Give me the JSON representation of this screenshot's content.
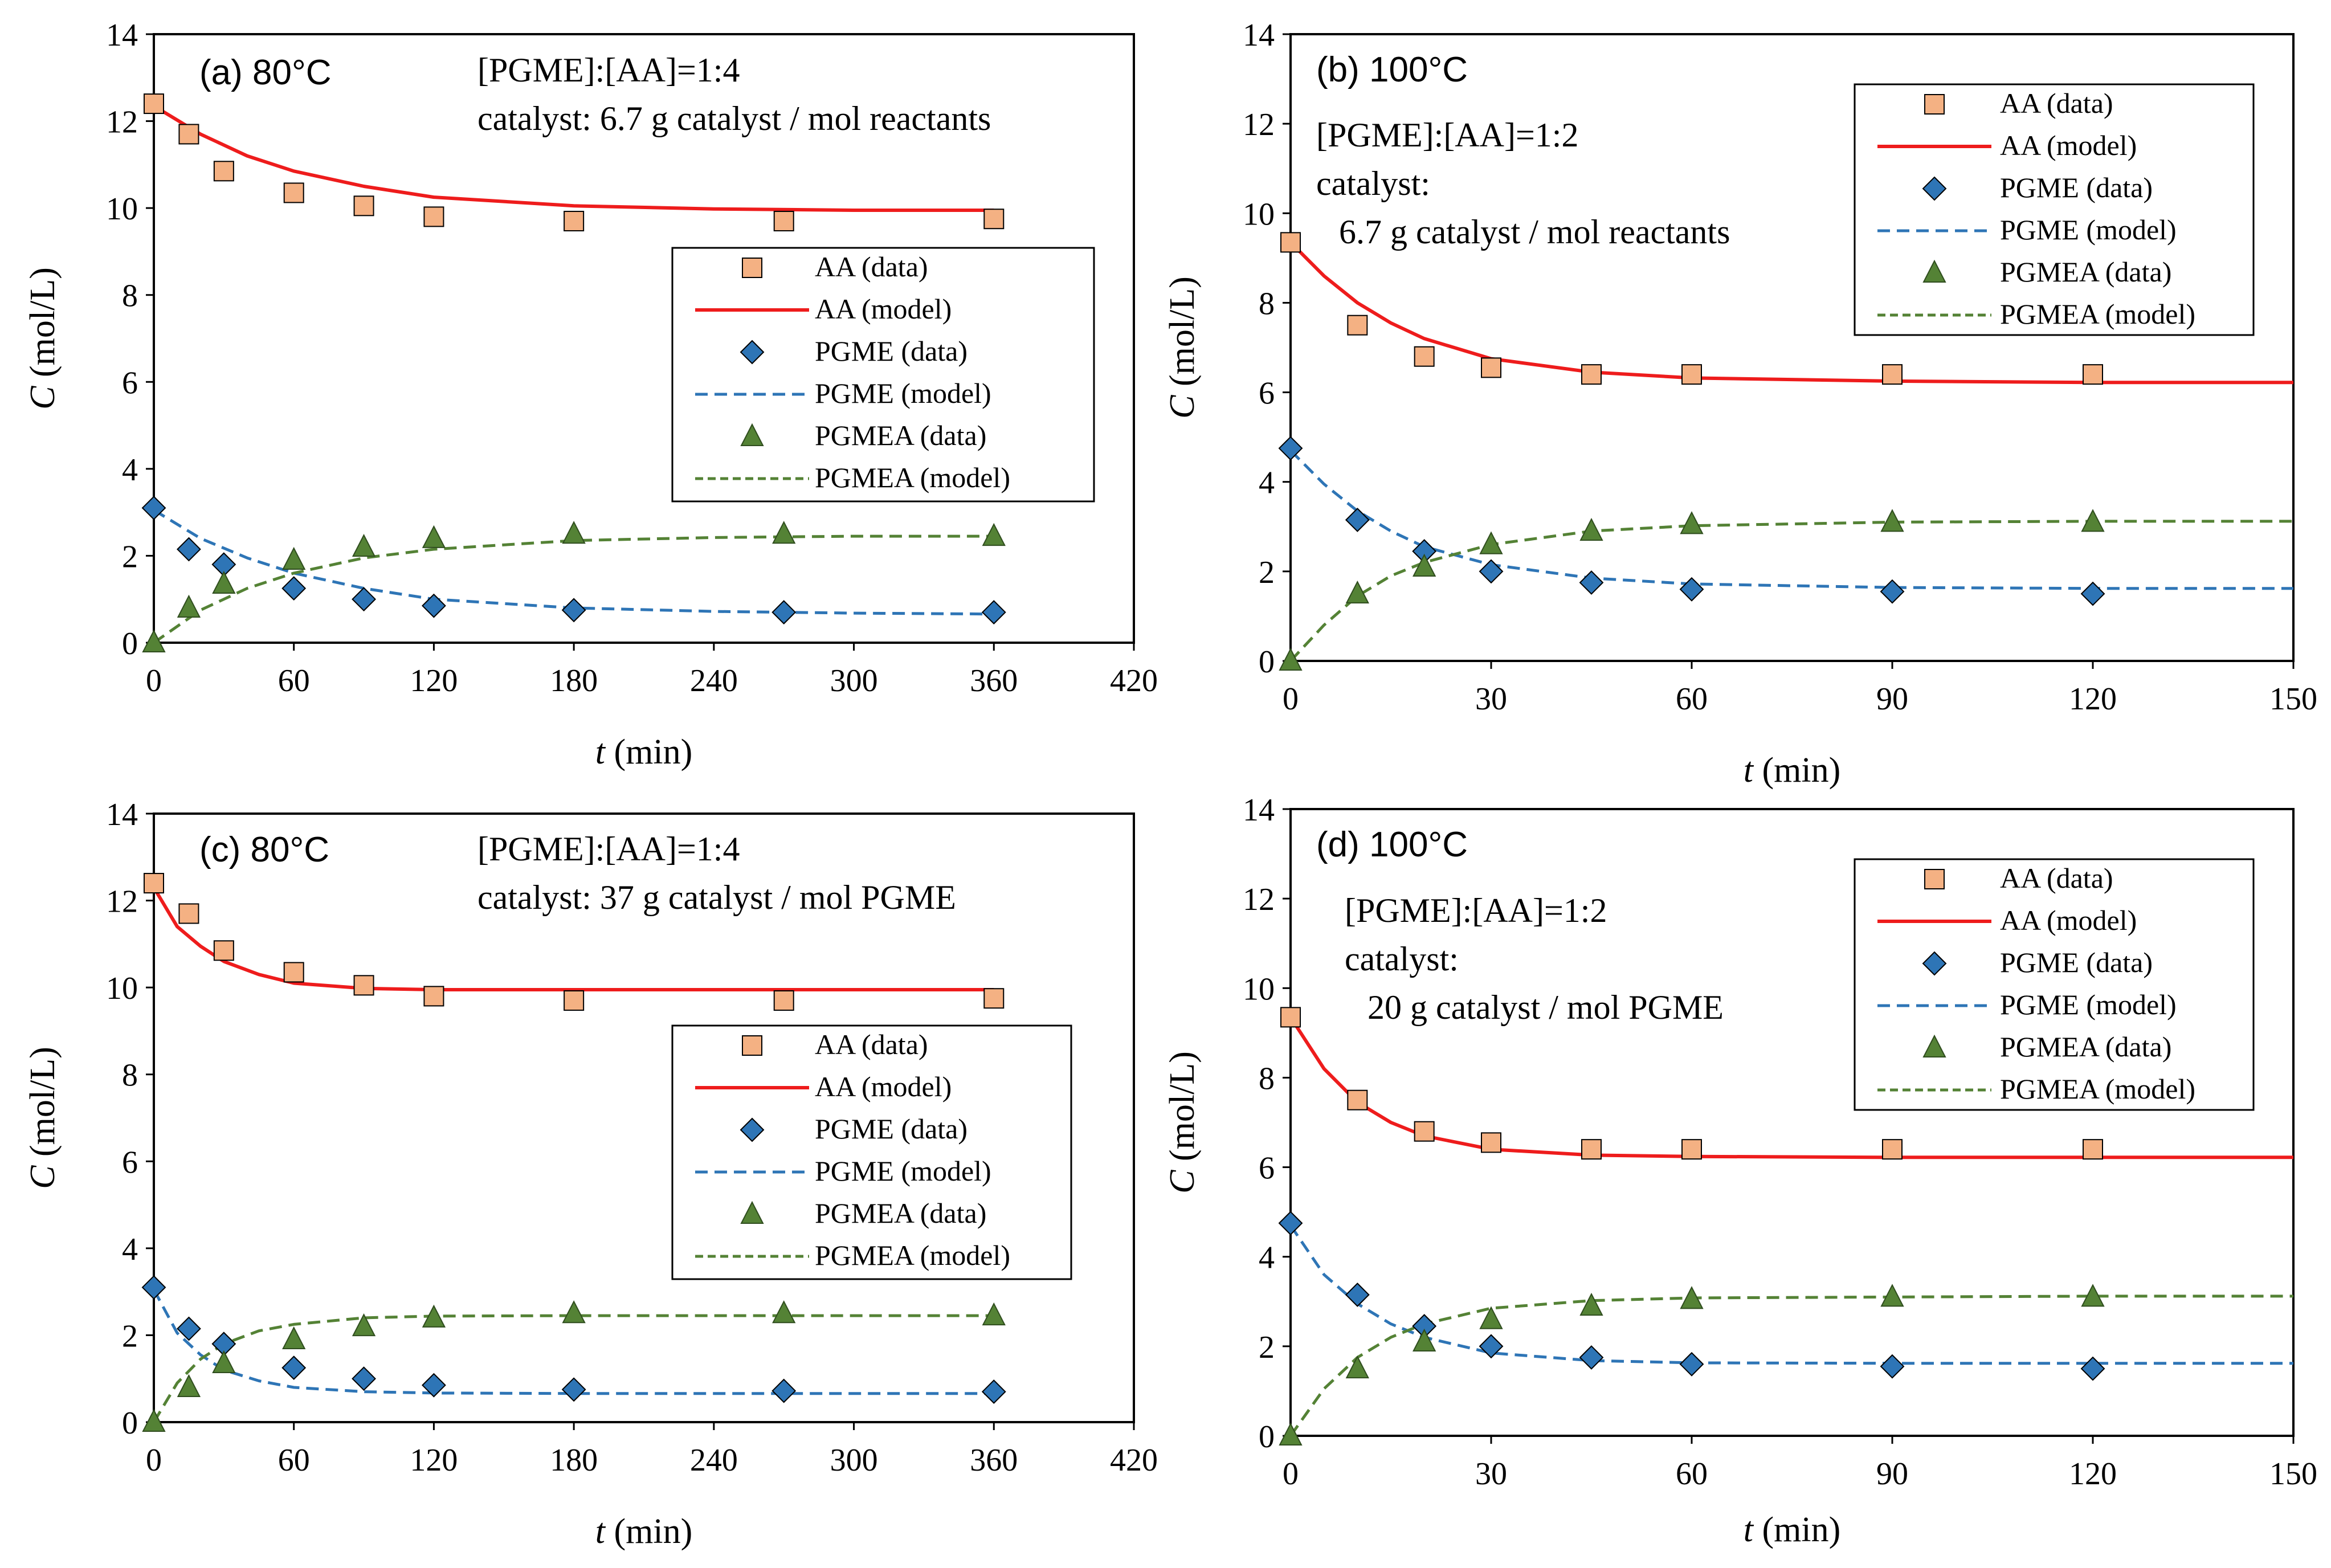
{
  "chart_data": [
    {
      "type": "line",
      "panel": "(a) 80°C",
      "annotations": [
        "[PGME]:[AA]=1:4",
        "catalyst: 6.7 g catalyst / mol reactants"
      ],
      "xlabel_var": "t",
      "xlabel_unit": " (min)",
      "ylabel_var": "C",
      "ylabel_unit": " (mol/L)",
      "xlim": [
        0,
        420
      ],
      "ylim": [
        0,
        14
      ],
      "xticks": [
        0,
        60,
        120,
        180,
        240,
        300,
        360,
        420
      ],
      "yticks": [
        0,
        2,
        4,
        6,
        8,
        10,
        12,
        14
      ],
      "legend": [
        "AA (data)",
        "AA (model)",
        "PGME (data)",
        "PGME (model)",
        "PGMEA (data)",
        "PGMEA (model)"
      ],
      "series": [
        {
          "name": "AA (data)",
          "kind": "marker",
          "marker": "square",
          "x": [
            0,
            15,
            30,
            60,
            90,
            120,
            180,
            270,
            360
          ],
          "y": [
            12.4,
            11.7,
            10.85,
            10.35,
            10.05,
            9.8,
            9.7,
            9.7,
            9.75
          ]
        },
        {
          "name": "PGME (data)",
          "kind": "marker",
          "marker": "diamond",
          "x": [
            0,
            15,
            30,
            60,
            90,
            120,
            180,
            270,
            360
          ],
          "y": [
            3.1,
            2.15,
            1.8,
            1.25,
            1.0,
            0.85,
            0.75,
            0.7,
            0.7
          ]
        },
        {
          "name": "PGMEA (data)",
          "kind": "marker",
          "marker": "triangle",
          "x": [
            0,
            15,
            30,
            60,
            90,
            120,
            180,
            270,
            360
          ],
          "y": [
            0.0,
            0.8,
            1.35,
            1.9,
            2.2,
            2.4,
            2.5,
            2.5,
            2.45
          ]
        },
        {
          "name": "AA (model)",
          "kind": "line",
          "style": "solid",
          "x": [
            0,
            20,
            40,
            60,
            90,
            120,
            180,
            240,
            300,
            360
          ],
          "y": [
            12.35,
            11.7,
            11.2,
            10.85,
            10.5,
            10.25,
            10.05,
            9.98,
            9.95,
            9.95
          ]
        },
        {
          "name": "PGME (model)",
          "kind": "line",
          "style": "dashed",
          "x": [
            0,
            20,
            40,
            60,
            90,
            120,
            180,
            240,
            300,
            360
          ],
          "y": [
            3.05,
            2.4,
            1.95,
            1.6,
            1.25,
            1.0,
            0.8,
            0.72,
            0.68,
            0.66
          ]
        },
        {
          "name": "PGMEA (model)",
          "kind": "line",
          "style": "dashed",
          "x": [
            0,
            20,
            40,
            60,
            90,
            120,
            180,
            240,
            300,
            360
          ],
          "y": [
            0.0,
            0.75,
            1.25,
            1.6,
            1.95,
            2.15,
            2.35,
            2.42,
            2.45,
            2.45
          ]
        }
      ]
    },
    {
      "type": "line",
      "panel": "(b) 100°C",
      "annotations": [
        "[PGME]:[AA]=1:2",
        "catalyst:",
        "6.7 g catalyst / mol reactants"
      ],
      "xlabel_var": "t",
      "xlabel_unit": " (min)",
      "ylabel_var": "C",
      "ylabel_unit": " (mol/L)",
      "xlim": [
        0,
        150
      ],
      "ylim": [
        0,
        14
      ],
      "xticks": [
        0,
        30,
        60,
        90,
        120,
        150
      ],
      "yticks": [
        0,
        2,
        4,
        6,
        8,
        10,
        12,
        14
      ],
      "legend": [
        "AA (data)",
        "AA (model)",
        "PGME (data)",
        "PGME (model)",
        "PGMEA (data)",
        "PGMEA (model)"
      ],
      "series": [
        {
          "name": "AA (data)",
          "kind": "marker",
          "marker": "square",
          "x": [
            0,
            10,
            20,
            30,
            45,
            60,
            90,
            120
          ],
          "y": [
            9.35,
            7.5,
            6.8,
            6.55,
            6.4,
            6.4,
            6.4,
            6.4
          ]
        },
        {
          "name": "PGME (data)",
          "kind": "marker",
          "marker": "diamond",
          "x": [
            0,
            10,
            20,
            30,
            45,
            60,
            90,
            120
          ],
          "y": [
            4.75,
            3.15,
            2.45,
            2.0,
            1.75,
            1.6,
            1.55,
            1.5
          ]
        },
        {
          "name": "PGMEA (data)",
          "kind": "marker",
          "marker": "triangle",
          "x": [
            0,
            10,
            20,
            30,
            45,
            60,
            90,
            120
          ],
          "y": [
            0.0,
            1.5,
            2.1,
            2.6,
            2.9,
            3.05,
            3.1,
            3.1
          ]
        },
        {
          "name": "AA (model)",
          "kind": "line",
          "style": "solid",
          "x": [
            0,
            5,
            10,
            15,
            20,
            30,
            45,
            60,
            90,
            120,
            150
          ],
          "y": [
            9.35,
            8.6,
            8.0,
            7.55,
            7.2,
            6.75,
            6.45,
            6.32,
            6.25,
            6.22,
            6.22
          ]
        },
        {
          "name": "PGME (model)",
          "kind": "line",
          "style": "dashed",
          "x": [
            0,
            5,
            10,
            15,
            20,
            30,
            45,
            60,
            90,
            120,
            150
          ],
          "y": [
            4.7,
            3.95,
            3.35,
            2.9,
            2.55,
            2.15,
            1.85,
            1.72,
            1.64,
            1.62,
            1.62
          ]
        },
        {
          "name": "PGMEA (model)",
          "kind": "line",
          "style": "dashed",
          "x": [
            0,
            5,
            10,
            15,
            20,
            30,
            45,
            60,
            90,
            120,
            150
          ],
          "y": [
            0.0,
            0.8,
            1.45,
            1.9,
            2.2,
            2.6,
            2.9,
            3.02,
            3.1,
            3.12,
            3.12
          ]
        }
      ]
    },
    {
      "type": "line",
      "panel": "(c) 80°C",
      "annotations": [
        "[PGME]:[AA]=1:4",
        "catalyst: 37 g catalyst / mol PGME"
      ],
      "xlabel_var": "t",
      "xlabel_unit": " (min)",
      "ylabel_var": "C",
      "ylabel_unit": " (mol/L)",
      "xlim": [
        0,
        420
      ],
      "ylim": [
        0,
        14
      ],
      "xticks": [
        0,
        60,
        120,
        180,
        240,
        300,
        360,
        420
      ],
      "yticks": [
        0,
        2,
        4,
        6,
        8,
        10,
        12,
        14
      ],
      "legend": [
        "AA (data)",
        "AA (model)",
        "PGME (data)",
        "PGME (model)",
        "PGMEA (data)",
        "PGMEA (model)"
      ],
      "series": [
        {
          "name": "AA (data)",
          "kind": "marker",
          "marker": "square",
          "x": [
            0,
            15,
            30,
            60,
            90,
            120,
            180,
            270,
            360
          ],
          "y": [
            12.4,
            11.7,
            10.85,
            10.35,
            10.05,
            9.8,
            9.7,
            9.7,
            9.75
          ]
        },
        {
          "name": "PGME (data)",
          "kind": "marker",
          "marker": "diamond",
          "x": [
            0,
            15,
            30,
            60,
            90,
            120,
            180,
            270,
            360
          ],
          "y": [
            3.1,
            2.15,
            1.8,
            1.25,
            1.0,
            0.85,
            0.75,
            0.72,
            0.7
          ]
        },
        {
          "name": "PGMEA (data)",
          "kind": "marker",
          "marker": "triangle",
          "x": [
            0,
            15,
            30,
            60,
            90,
            120,
            180,
            270,
            360
          ],
          "y": [
            0.0,
            0.8,
            1.35,
            1.9,
            2.2,
            2.4,
            2.5,
            2.5,
            2.45
          ]
        },
        {
          "name": "AA (model)",
          "kind": "line",
          "style": "solid",
          "x": [
            0,
            10,
            20,
            30,
            45,
            60,
            90,
            120,
            180,
            270,
            360
          ],
          "y": [
            12.3,
            11.4,
            10.95,
            10.6,
            10.3,
            10.1,
            9.98,
            9.95,
            9.95,
            9.95,
            9.95
          ]
        },
        {
          "name": "PGME (model)",
          "kind": "line",
          "style": "dashed",
          "x": [
            0,
            10,
            20,
            30,
            45,
            60,
            90,
            120,
            180,
            270,
            360
          ],
          "y": [
            3.05,
            2.05,
            1.55,
            1.2,
            0.95,
            0.8,
            0.7,
            0.67,
            0.66,
            0.66,
            0.66
          ]
        },
        {
          "name": "PGMEA (model)",
          "kind": "line",
          "style": "dashed",
          "x": [
            0,
            10,
            20,
            30,
            45,
            60,
            90,
            120,
            180,
            270,
            360
          ],
          "y": [
            0.0,
            0.9,
            1.45,
            1.8,
            2.1,
            2.25,
            2.4,
            2.44,
            2.45,
            2.45,
            2.45
          ]
        }
      ]
    },
    {
      "type": "line",
      "panel": "(d) 100°C",
      "annotations": [
        "[PGME]:[AA]=1:2",
        "catalyst:",
        "20 g catalyst / mol PGME"
      ],
      "xlabel_var": "t",
      "xlabel_unit": " (min)",
      "ylabel_var": "C",
      "ylabel_unit": " (mol/L)",
      "xlim": [
        0,
        150
      ],
      "ylim": [
        0,
        14
      ],
      "xticks": [
        0,
        30,
        60,
        90,
        120,
        150
      ],
      "yticks": [
        0,
        2,
        4,
        6,
        8,
        10,
        12,
        14
      ],
      "legend": [
        "AA (data)",
        "AA (model)",
        "PGME (data)",
        "PGME (model)",
        "PGMEA (data)",
        "PGMEA (model)"
      ],
      "series": [
        {
          "name": "AA (data)",
          "kind": "marker",
          "marker": "square",
          "x": [
            0,
            10,
            20,
            30,
            45,
            60,
            90,
            120
          ],
          "y": [
            9.35,
            7.5,
            6.8,
            6.55,
            6.4,
            6.4,
            6.4,
            6.4
          ]
        },
        {
          "name": "PGME (data)",
          "kind": "marker",
          "marker": "diamond",
          "x": [
            0,
            10,
            20,
            30,
            45,
            60,
            90,
            120
          ],
          "y": [
            4.75,
            3.15,
            2.45,
            2.0,
            1.75,
            1.6,
            1.55,
            1.5
          ]
        },
        {
          "name": "PGMEA (data)",
          "kind": "marker",
          "marker": "triangle",
          "x": [
            0,
            10,
            20,
            30,
            45,
            60,
            90,
            120
          ],
          "y": [
            0.0,
            1.5,
            2.1,
            2.6,
            2.9,
            3.05,
            3.1,
            3.1
          ]
        },
        {
          "name": "AA (model)",
          "kind": "line",
          "style": "solid",
          "x": [
            0,
            5,
            10,
            15,
            20,
            30,
            45,
            60,
            90,
            120,
            150
          ],
          "y": [
            9.35,
            8.2,
            7.45,
            7.0,
            6.7,
            6.4,
            6.27,
            6.24,
            6.22,
            6.22,
            6.22
          ]
        },
        {
          "name": "PGME (model)",
          "kind": "line",
          "style": "dashed",
          "x": [
            0,
            5,
            10,
            15,
            20,
            30,
            45,
            60,
            90,
            120,
            150
          ],
          "y": [
            4.7,
            3.6,
            2.95,
            2.5,
            2.2,
            1.85,
            1.68,
            1.63,
            1.62,
            1.62,
            1.62
          ]
        },
        {
          "name": "PGMEA (model)",
          "kind": "line",
          "style": "dashed",
          "x": [
            0,
            5,
            10,
            15,
            20,
            30,
            45,
            60,
            90,
            120,
            150
          ],
          "y": [
            0.0,
            1.05,
            1.75,
            2.2,
            2.5,
            2.85,
            3.02,
            3.08,
            3.1,
            3.12,
            3.12
          ]
        }
      ]
    }
  ],
  "colors": {
    "aa_fill": "#f4b183",
    "aa_line": "#ee1c1c",
    "pgme_fill": "#2e75b6",
    "pgme_line": "#2e75b6",
    "pgmea_fill": "#548235",
    "pgmea_line": "#548235",
    "axis": "#000000",
    "marker_edge": "#000000"
  }
}
